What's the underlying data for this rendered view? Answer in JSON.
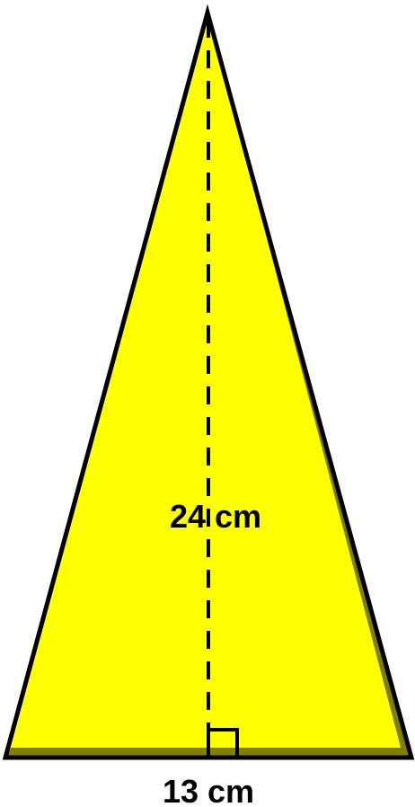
{
  "diagram": {
    "shape": "isosceles triangle",
    "height_label": "24 cm",
    "base_label": "13 cm",
    "colors": {
      "fill": "#ffff00",
      "shadow": "#808000",
      "stroke": "#000000",
      "background": "#ffffff"
    }
  }
}
